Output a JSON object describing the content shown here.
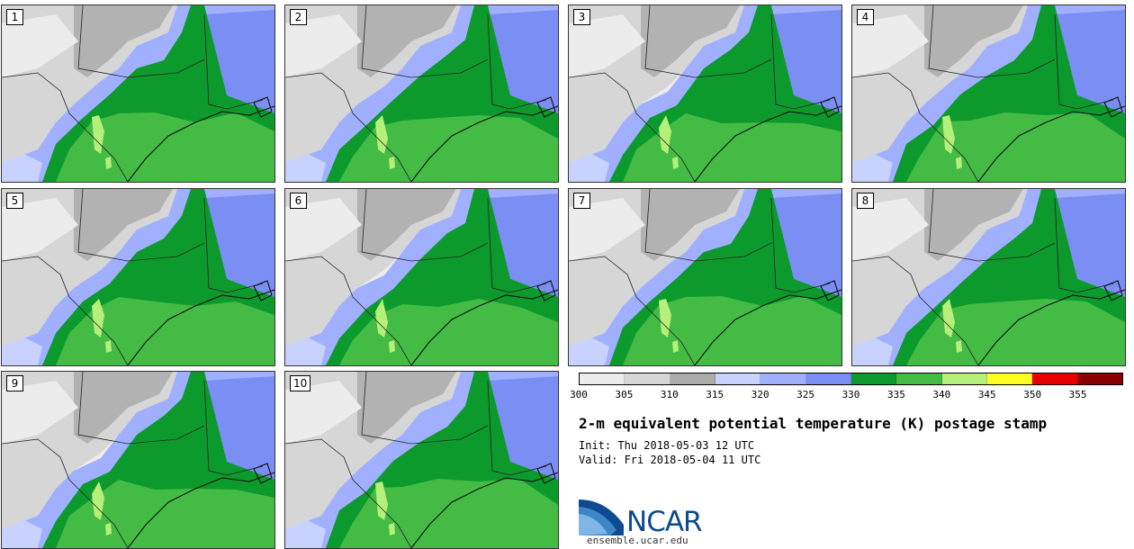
{
  "panels": [
    {
      "label": "1"
    },
    {
      "label": "2"
    },
    {
      "label": "3"
    },
    {
      "label": "4"
    },
    {
      "label": "5"
    },
    {
      "label": "6"
    },
    {
      "label": "7"
    },
    {
      "label": "8"
    },
    {
      "label": "9"
    },
    {
      "label": "10"
    }
  ],
  "colorbar": {
    "ticks": [
      "300",
      "305",
      "310",
      "315",
      "320",
      "325",
      "330",
      "335",
      "340",
      "345",
      "350",
      "355"
    ],
    "colors": [
      "#ececec",
      "#d6d6d6",
      "#ababab",
      "#c7d2ff",
      "#a0b0ff",
      "#7b8ef3",
      "#0d9a2d",
      "#44bb44",
      "#b5f07a",
      "#ffff22",
      "#e80000",
      "#8a0000"
    ]
  },
  "title": "2-m equivalent potential temperature (K) postage stamp",
  "init": "Init: Thu 2018-05-03 12 UTC",
  "valid": "Valid: Fri 2018-05-04 11 UTC",
  "logo": {
    "text": "NCAR",
    "site": "ensemble.ucar.edu"
  }
}
